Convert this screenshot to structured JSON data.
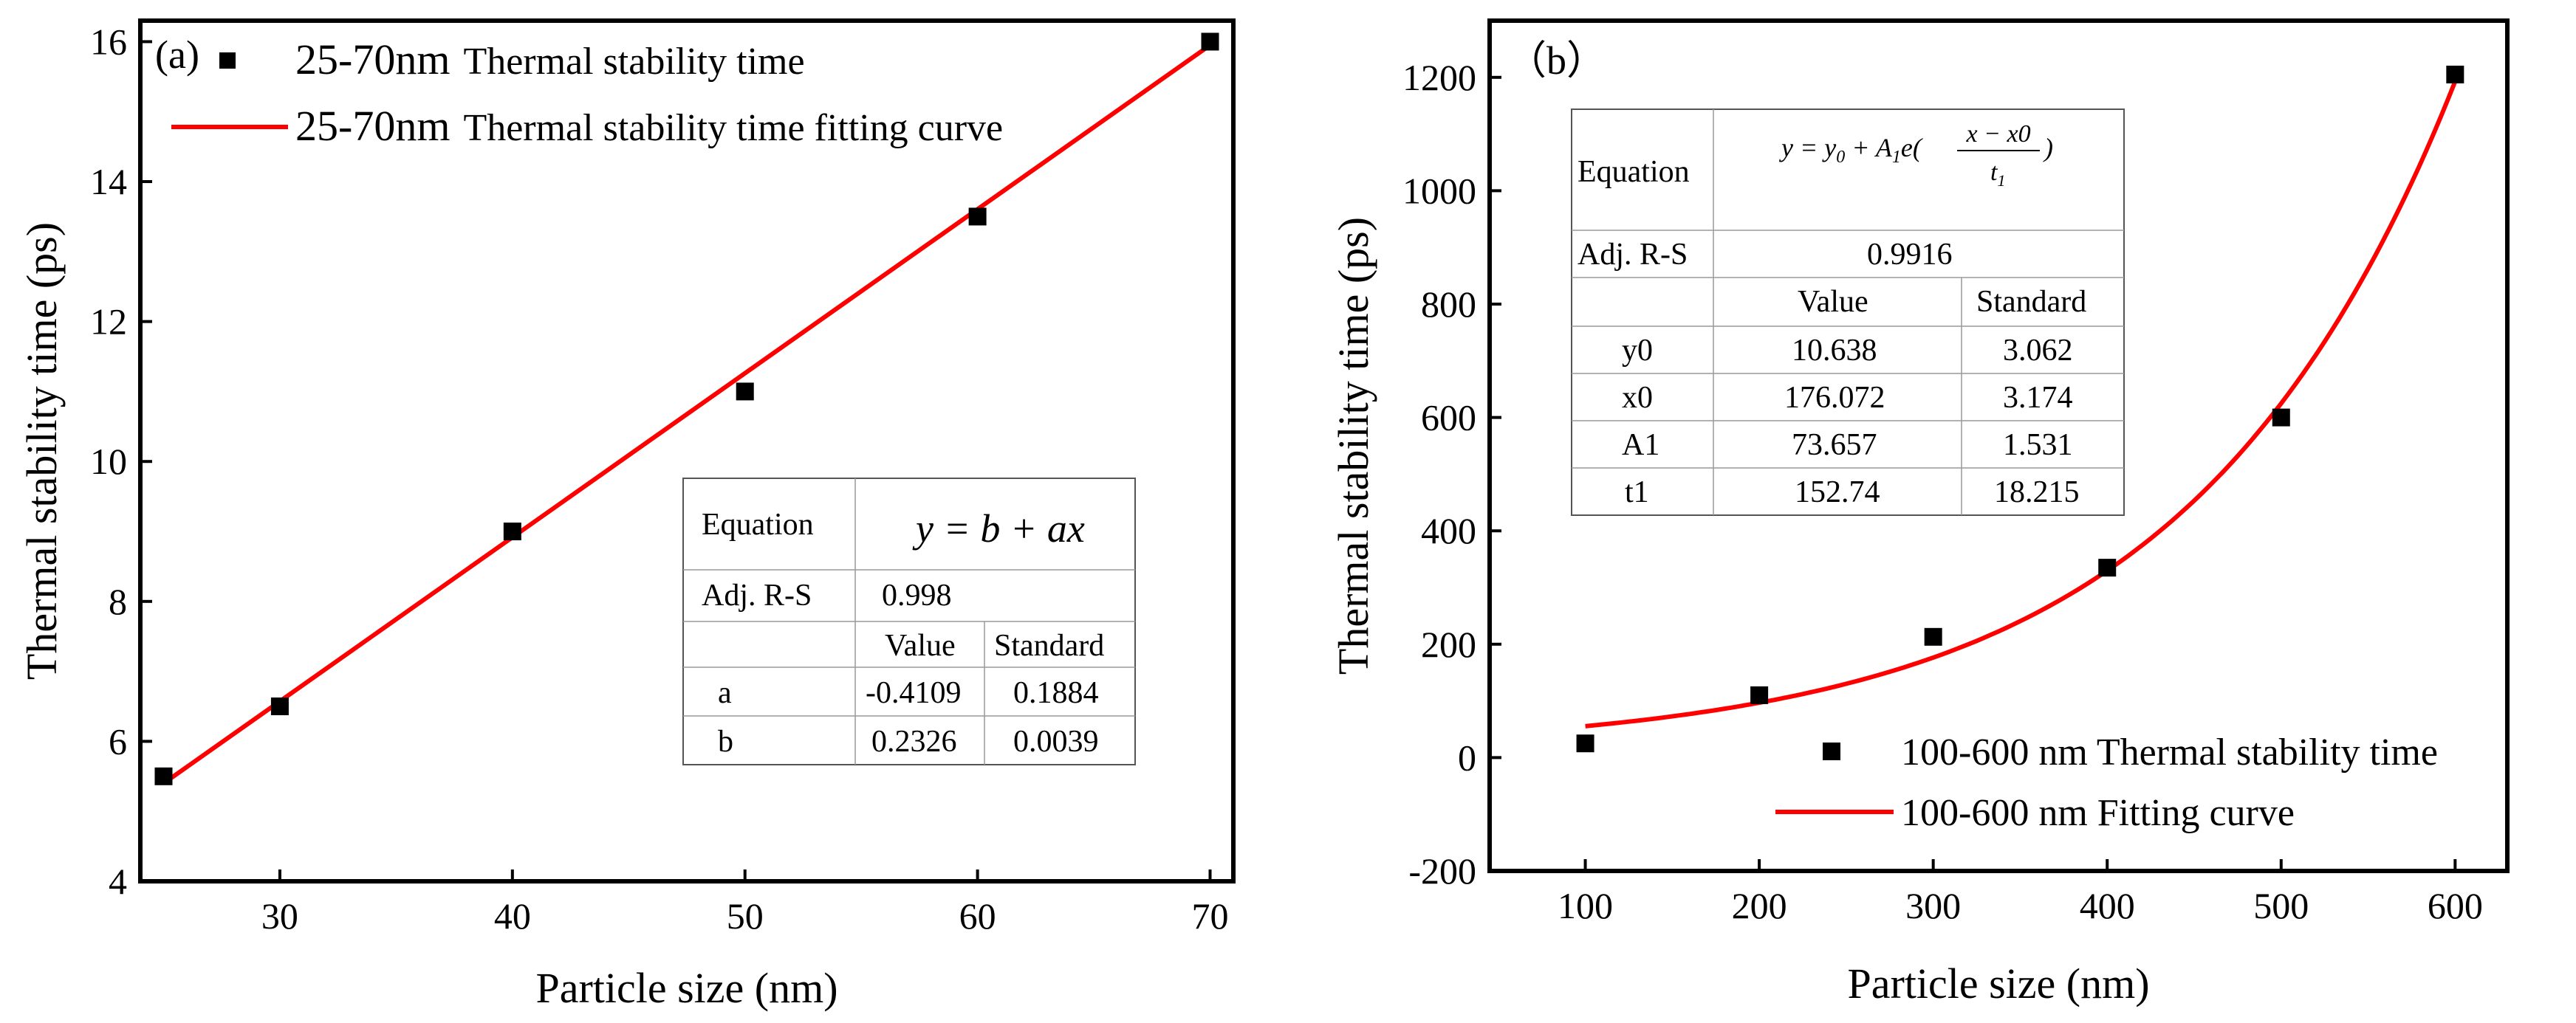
{
  "chart_data": [
    {
      "type": "scatter",
      "panel_label": "(a)",
      "xlabel": "Particle size (nm)",
      "ylabel": "Thermal stability time  (ps)",
      "xlim": [
        24,
        71
      ],
      "ylim": [
        4,
        16.3
      ],
      "xticks": [
        30,
        40,
        50,
        60,
        70
      ],
      "yticks": [
        4,
        6,
        8,
        10,
        12,
        14,
        16
      ],
      "series": [
        {
          "name": "25-70nm Thermal stability time",
          "legend_prefix": "25-70nm",
          "legend_suffix": "Thermal stability time",
          "kind": "scatter",
          "color": "#000000",
          "x": [
            25,
            30,
            40,
            50,
            60,
            70
          ],
          "y": [
            5.5,
            6.5,
            9.0,
            11.0,
            13.5,
            16.0
          ]
        },
        {
          "name": "25-70nm Thermal stability time fitting curve",
          "legend_prefix": "25-70nm",
          "legend_suffix": "Thermal stability time fitting curve",
          "kind": "line",
          "color": "#ff0000",
          "x": [
            25,
            70
          ],
          "y": [
            5.4,
            15.95
          ]
        }
      ],
      "fit_table": {
        "equation_label": "Equation",
        "equation": "y = b + ax",
        "adj_r_label": "Adj. R-S",
        "adj_r": "0.998",
        "col_headers": [
          "Value",
          "Standard"
        ],
        "rows": [
          {
            "param": "a",
            "value": "-0.4109",
            "std": "0.1884"
          },
          {
            "param": "b",
            "value": "0.2326",
            "std": "0.0039"
          }
        ]
      }
    },
    {
      "type": "scatter",
      "panel_label": "（b）",
      "xlabel": "Particle size (nm)",
      "ylabel": "Thermal stability time (ps)",
      "xlim": [
        45,
        630
      ],
      "ylim": [
        -200,
        1300
      ],
      "xticks": [
        100,
        200,
        300,
        400,
        500,
        600
      ],
      "yticks": [
        -200,
        0,
        200,
        400,
        600,
        800,
        1000,
        1200
      ],
      "series": [
        {
          "name": "100-600 nm Thermal stability time",
          "kind": "scatter",
          "color": "#000000",
          "x": [
            100,
            200,
            300,
            400,
            500,
            600
          ],
          "y": [
            25,
            110,
            213,
            335,
            600,
            1205
          ]
        },
        {
          "name": "100-600 nm Fitting curve",
          "kind": "line",
          "color": "#ff0000",
          "y0": 10.638,
          "x0": 176.072,
          "A1": 73.657,
          "t1": 152.74,
          "x_range": [
            100,
            600
          ]
        }
      ],
      "fit_table": {
        "equation_label": "Equation",
        "eq_parts": [
          "y = y",
          "0",
          " + A",
          "1",
          "e(",
          "x − x0",
          "t",
          "1",
          ")"
        ],
        "adj_r_label": "Adj. R-S",
        "adj_r": "0.9916",
        "col_headers": [
          "Value",
          "Standard"
        ],
        "rows": [
          {
            "param": "y0",
            "value": "10.638",
            "std": "3.062"
          },
          {
            "param": "x0",
            "value": "176.072",
            "std": "3.174"
          },
          {
            "param": "A1",
            "value": "73.657",
            "std": "1.531"
          },
          {
            "param": "t1",
            "value": "152.74",
            "std": "18.215"
          }
        ]
      }
    }
  ]
}
